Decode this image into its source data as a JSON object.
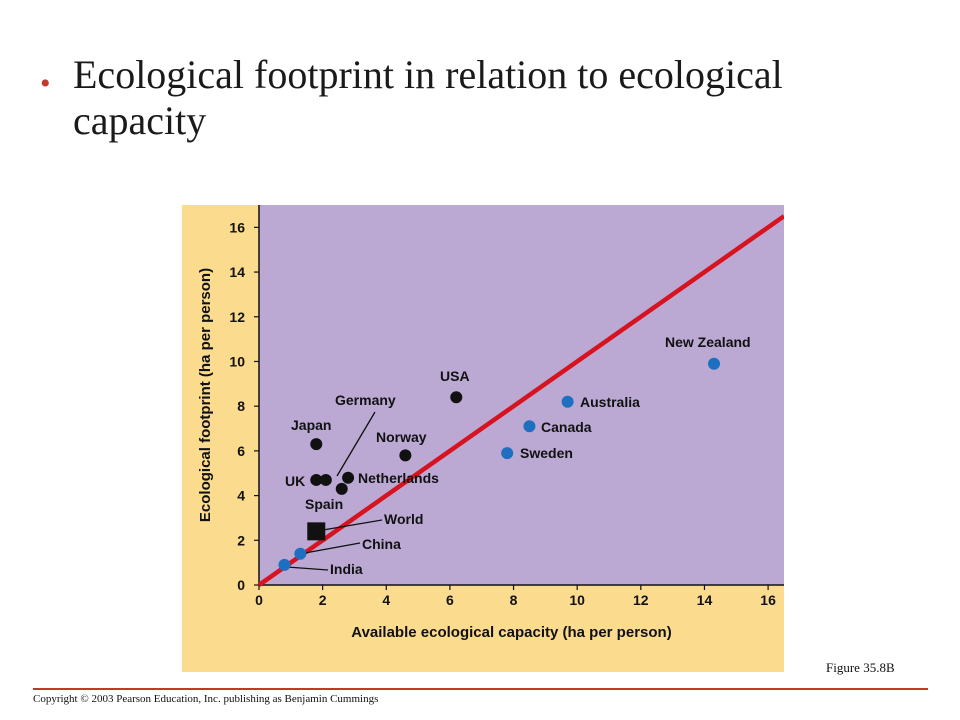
{
  "slide": {
    "bullet": "•",
    "title": "Ecological footprint in relation to ecological capacity",
    "figure_label": "Figure 35.8B",
    "copyright": "Copyright © 2003 Pearson Education, Inc. publishing as Benjamin Cummings"
  },
  "colors": {
    "panel": "#fbdc8e",
    "plot_bg": "#bba9d4",
    "line": "#d7131f",
    "developed": "#111111",
    "other": "#1f6fc0"
  },
  "chart_data": {
    "type": "scatter",
    "title": "",
    "xlabel": "Available ecological capacity (ha per person)",
    "ylabel": "Ecological footprint (ha per person)",
    "xlim": [
      0,
      16.5
    ],
    "ylim": [
      0,
      17
    ],
    "xticks": [
      0,
      2,
      4,
      6,
      8,
      10,
      12,
      14,
      16
    ],
    "yticks": [
      0,
      2,
      4,
      6,
      8,
      10,
      12,
      14,
      16
    ],
    "reference_line": {
      "x": [
        0,
        16.5
      ],
      "y": [
        0,
        16.5
      ]
    },
    "points": [
      {
        "label": "New Zealand",
        "x": 14.3,
        "y": 9.9,
        "group": "other"
      },
      {
        "label": "USA",
        "x": 6.2,
        "y": 8.4,
        "group": "developed"
      },
      {
        "label": "Australia",
        "x": 9.7,
        "y": 8.2,
        "group": "other"
      },
      {
        "label": "Canada",
        "x": 8.5,
        "y": 7.1,
        "group": "other"
      },
      {
        "label": "Sweden",
        "x": 7.8,
        "y": 5.9,
        "group": "other"
      },
      {
        "label": "Norway",
        "x": 4.6,
        "y": 5.8,
        "group": "developed"
      },
      {
        "label": "Japan",
        "x": 1.8,
        "y": 6.3,
        "group": "developed"
      },
      {
        "label": "Germany",
        "x": 2.1,
        "y": 4.7,
        "group": "developed"
      },
      {
        "label": "UK",
        "x": 1.8,
        "y": 4.7,
        "group": "developed"
      },
      {
        "label": "Netherlands",
        "x": 2.8,
        "y": 4.8,
        "group": "developed"
      },
      {
        "label": "Spain",
        "x": 2.6,
        "y": 4.3,
        "group": "developed"
      },
      {
        "label": "World",
        "x": 1.8,
        "y": 2.4,
        "group": "world"
      },
      {
        "label": "China",
        "x": 1.3,
        "y": 1.4,
        "group": "other"
      },
      {
        "label": "India",
        "x": 0.8,
        "y": 0.9,
        "group": "other"
      }
    ]
  }
}
